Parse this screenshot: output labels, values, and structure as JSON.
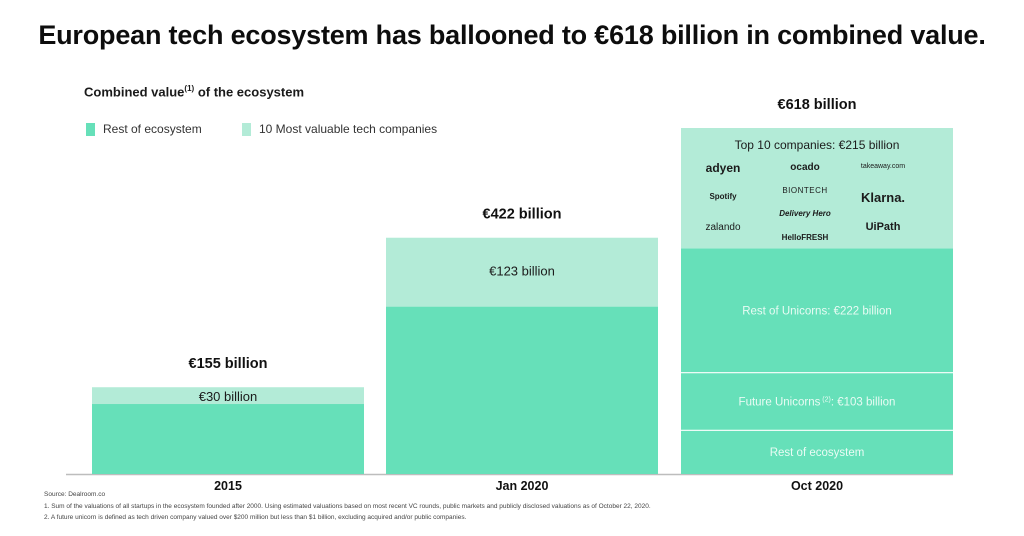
{
  "title": "European tech ecosystem has ballooned to €618 billion in combined value.",
  "subtitle": {
    "text": "Combined value",
    "sup": "(1)",
    "suffix": " of the ecosystem"
  },
  "colors": {
    "rest": "#66e0b9",
    "top10": "#b3ebd7",
    "divider": "#ffffff",
    "axis": "#bdbdbd"
  },
  "chart_data": {
    "type": "bar",
    "stacked": true,
    "categories": [
      "2015",
      "Jan 2020",
      "Oct 2020"
    ],
    "totals_labels": [
      "€155 billion",
      "€422 billion",
      "€618 billion"
    ],
    "totals": [
      155,
      422,
      618
    ],
    "legend": [
      {
        "name": "Rest of ecosystem",
        "color": "#66e0b9"
      },
      {
        "name": "10 Most valuable tech companies",
        "color": "#b3ebd7"
      }
    ],
    "bars": [
      {
        "category": "2015",
        "segments": [
          {
            "value": 125,
            "color": "#66e0b9",
            "label": ""
          },
          {
            "value": 30,
            "color": "#b3ebd7",
            "label": "€30 billion"
          }
        ]
      },
      {
        "category": "Jan 2020",
        "segments": [
          {
            "value": 299,
            "color": "#66e0b9",
            "label": ""
          },
          {
            "value": 123,
            "color": "#b3ebd7",
            "label": "€123 billion"
          }
        ]
      },
      {
        "category": "Oct 2020",
        "segments": [
          {
            "value": 78,
            "color": "#66e0b9",
            "label": "Rest of ecosystem"
          },
          {
            "value": 103,
            "color": "#66e0b9",
            "label": "Future Unicorns",
            "sup": "(2)",
            "label_suffix": ": €103 billion"
          },
          {
            "value": 222,
            "color": "#66e0b9",
            "label": "Rest of Unicorns: €222 billion"
          },
          {
            "value": 215,
            "color": "#b3ebd7",
            "label": "Top 10 companies: €215 billion"
          }
        ]
      }
    ],
    "top10_logos": [
      "adyen",
      "ocado",
      "takeaway.com",
      "Spotify",
      "BIONTECH",
      "Klarna.",
      "Delivery Hero",
      "zalando",
      "HelloFRESH",
      "UiPath"
    ]
  },
  "footnotes": {
    "source": "Source: Dealroom.co",
    "note1": "1.  Sum of the valuations of all startups in the ecosystem founded after 2000. Using estimated valuations based on most recent VC rounds, public markets and publicly disclosed valuations as of October 22, 2020.",
    "note2": "2. A future unicorn is defined as tech driven company valued over $200 million but less than $1 billion, excluding acquired and/or public companies."
  }
}
